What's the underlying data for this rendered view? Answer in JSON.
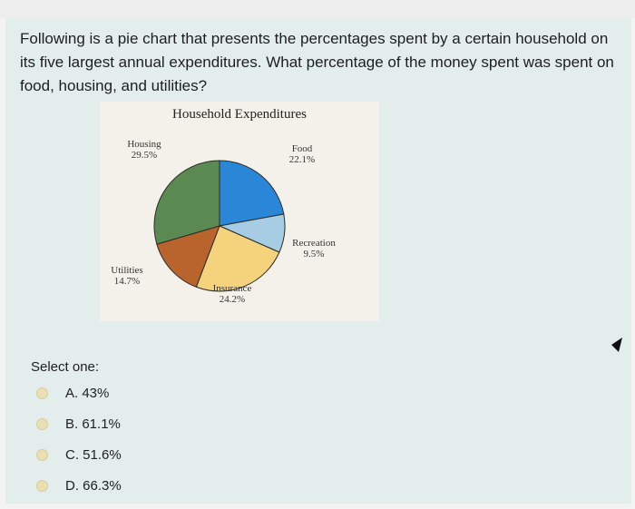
{
  "question": "Following is a pie chart that presents the percentages spent by a certain household on its five largest annual expenditures. What percentage of the money spent was spent on food, housing, and utilities?",
  "chart_data": {
    "type": "pie",
    "title": "Household Expenditures",
    "slices": [
      {
        "label": "Food",
        "value_label": "22.1%",
        "value": 22.1,
        "color": "#2a86d6"
      },
      {
        "label": "Recreation",
        "value_label": "9.5%",
        "value": 9.5,
        "color": "#a6cde3"
      },
      {
        "label": "Insurance",
        "value_label": "24.2%",
        "value": 24.2,
        "color": "#f5d37c"
      },
      {
        "label": "Utilities",
        "value_label": "14.7%",
        "value": 14.7,
        "color": "#b9642c"
      },
      {
        "label": "Housing",
        "value_label": "29.5%",
        "value": 29.5,
        "color": "#5a8a52"
      }
    ]
  },
  "select_label": "Select one:",
  "options": [
    {
      "label": "A. 43%"
    },
    {
      "label": "B. 61.1%"
    },
    {
      "label": "C. 51.6%"
    },
    {
      "label": "D. 66.3%"
    }
  ],
  "colors": {
    "card": "#e3eeec",
    "chart_bg": "#f4f1ea",
    "radio": "#eadfb4"
  }
}
